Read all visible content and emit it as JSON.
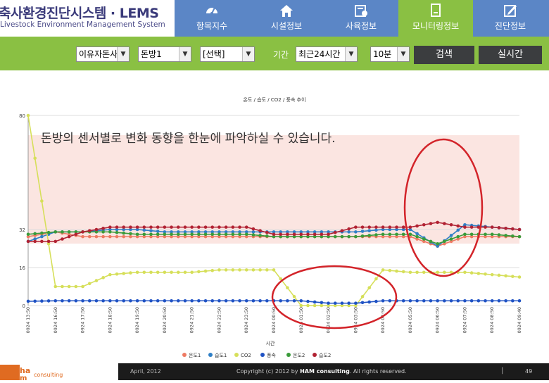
{
  "header": {
    "brand": "축사환경진단시스템 · LEMS",
    "subtitle": "Livestock Environment Management System",
    "nav": [
      {
        "label": "항목지수",
        "icon": "gauge-icon"
      },
      {
        "label": "시설정보",
        "icon": "house-icon"
      },
      {
        "label": "사육정보",
        "icon": "calendar-icon"
      },
      {
        "label": "모니터링정보",
        "icon": "monitor-icon"
      },
      {
        "label": "진단정보",
        "icon": "pencil-icon"
      }
    ],
    "active_index": 3,
    "colors": {
      "header": "#5b86c6",
      "active": "#8ac043",
      "toolbar": "#8ac043"
    }
  },
  "toolbar": {
    "farm_select": "이유자돈사",
    "room_select": "돈방1",
    "sensor_select": "[선택]",
    "period_label": "기간",
    "period_select": "최근24시간",
    "interval_select": "10분",
    "search_label": "검색",
    "realtime_label": "실시간"
  },
  "annotation": "돈방의 센서별로 변화 동향을 한눈에 파악하실 수 있습니다.",
  "chart_data": {
    "type": "line",
    "title": "온도 / 습도 / CO2 / 풍속 추이",
    "xlabel": "시간",
    "ylabel": "",
    "ylim": [
      0,
      80
    ],
    "ytick_labels": [
      "0",
      "16",
      "32",
      "80"
    ],
    "x": [
      "0924 13:50",
      "0924 16:50",
      "0924 17:50",
      "0924 18:50",
      "0924 19:50",
      "0924 20:50",
      "0924 21:50",
      "0924 22:50",
      "0924 23:50",
      "0924 00:50",
      "0924 01:50",
      "0924 02:50",
      "0924 03:50",
      "0924 04:50",
      "0924 05:50",
      "0924 06:50",
      "0924 07:50",
      "0924 08:50",
      "0924 09:40"
    ],
    "series": [
      {
        "name": "온도1",
        "color": "#ee7a63",
        "values": [
          29,
          31,
          29,
          29,
          29,
          29,
          29,
          29,
          29,
          29,
          29,
          29,
          29,
          29,
          29,
          25,
          29,
          29,
          29
        ]
      },
      {
        "name": "습도1",
        "color": "#2f7fc6",
        "values": [
          27,
          31,
          31,
          32,
          32,
          31,
          31,
          31,
          31,
          31,
          31,
          31,
          31,
          32,
          32,
          25,
          34,
          33,
          32
        ]
      },
      {
        "name": "CO2",
        "color": "#d6df5a",
        "values": [
          80,
          8,
          8,
          13,
          14,
          14,
          14,
          15,
          15,
          15,
          0,
          0,
          0,
          15,
          14,
          14,
          14,
          13,
          12
        ]
      },
      {
        "name": "풍속",
        "color": "#1f52c4",
        "values": [
          1.8,
          2,
          2,
          2,
          2,
          2,
          2,
          2,
          2,
          2,
          2,
          1,
          1,
          2,
          2,
          2,
          2,
          2,
          2
        ]
      },
      {
        "name": "온도2",
        "color": "#3a9b3a",
        "values": [
          30,
          31,
          31,
          31,
          30,
          30,
          30,
          30,
          30,
          29,
          29,
          29,
          29,
          30,
          30,
          26,
          30,
          30,
          29
        ]
      },
      {
        "name": "습도2",
        "color": "#b12233",
        "values": [
          27,
          27,
          31,
          33,
          33,
          33,
          33,
          33,
          33,
          30,
          30,
          30,
          33,
          33,
          33,
          35,
          33,
          33,
          32
        ]
      }
    ]
  }
}
